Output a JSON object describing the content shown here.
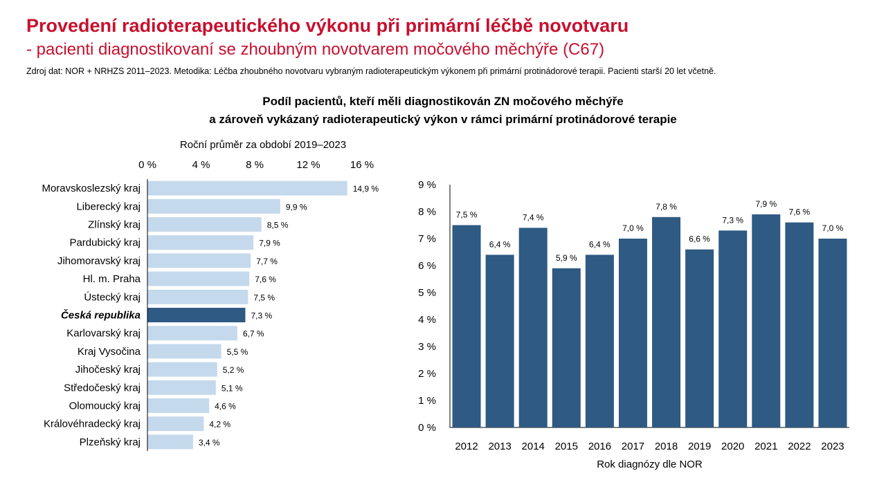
{
  "header": {
    "title": "Provedení radioterapeutického výkonu při primární léčbě novotvaru",
    "subtitle": "- pacienti diagnostikovaní se zhoubným novotvarem močového měchýře (C67)",
    "source": "Zdroj dat: NOR + NRHZS 2011–2023. Metodika: Léčba zhoubného novotvaru vybraným radioterapeutickým výkonem při primární protinádorové terapii. Pacienti starší 20 let včetně."
  },
  "chart_heading": {
    "line1": "Podíl pacientů, kteří měli diagnostikován ZN močového měchýře",
    "line2": "a zároveň vykázaný radioterapeutický výkon v rámci primární protinádorové terapie"
  },
  "colors": {
    "title": "#c8102e",
    "bar_light": "#c5d9ec",
    "bar_dark": "#2e5a83",
    "axis": "#000000"
  },
  "chart_data": [
    {
      "type": "bar",
      "orientation": "horizontal",
      "title": "Roční průměr za období 2019–2023",
      "xlim": [
        0,
        16
      ],
      "ticks": [
        0,
        4,
        8,
        12,
        16
      ],
      "tick_labels": [
        "0 %",
        "4 %",
        "8 %",
        "12 %",
        "16 %"
      ],
      "categories": [
        "Moravskoslezský kraj",
        "Liberecký kraj",
        "Zlínský kraj",
        "Pardubický kraj",
        "Jihomoravský kraj",
        "Hl. m. Praha",
        "Ústecký kraj",
        "Česká republika",
        "Karlovarský kraj",
        "Kraj Vysočina",
        "Jihočeský kraj",
        "Středočeský kraj",
        "Olomoucký kraj",
        "Královéhradecký kraj",
        "Plzeňský kraj"
      ],
      "values": [
        14.9,
        9.9,
        8.5,
        7.9,
        7.7,
        7.6,
        7.5,
        7.3,
        6.7,
        5.5,
        5.2,
        5.1,
        4.6,
        4.2,
        3.4
      ],
      "data_labels": [
        "14,9 %",
        "9,9 %",
        "8,5 %",
        "7,9 %",
        "7,7 %",
        "7,6 %",
        "7,5 %",
        "7,3 %",
        "6,7 %",
        "5,5 %",
        "5,2 %",
        "5,1 %",
        "4,6 %",
        "4,2 %",
        "3,4 %"
      ],
      "highlight": "Česká republika"
    },
    {
      "type": "bar",
      "xlabel": "Rok diagnózy dle NOR",
      "ylim": [
        0,
        9
      ],
      "ticks": [
        0,
        1,
        2,
        3,
        4,
        5,
        6,
        7,
        8,
        9
      ],
      "tick_labels": [
        "0 %",
        "1 %",
        "2 %",
        "3 %",
        "4 %",
        "5 %",
        "6 %",
        "7 %",
        "8 %",
        "9 %"
      ],
      "categories": [
        "2012",
        "2013",
        "2014",
        "2015",
        "2016",
        "2017",
        "2018",
        "2019",
        "2020",
        "2021",
        "2022",
        "2023"
      ],
      "values": [
        7.5,
        6.4,
        7.4,
        5.9,
        6.4,
        7.0,
        7.8,
        6.6,
        7.3,
        7.9,
        7.6,
        7.0
      ],
      "data_labels": [
        "7,5 %",
        "6,4 %",
        "7,4 %",
        "5,9 %",
        "6,4 %",
        "7,0 %",
        "7,8 %",
        "6,6 %",
        "7,3 %",
        "7,9 %",
        "7,6 %",
        "7,0 %"
      ]
    }
  ]
}
